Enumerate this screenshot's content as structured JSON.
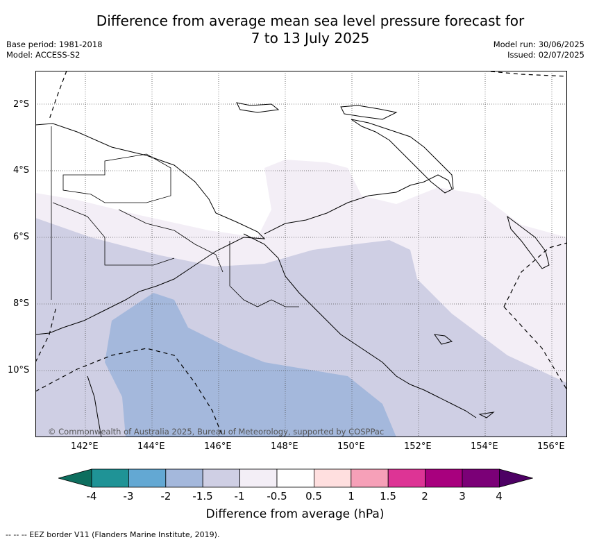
{
  "title": {
    "line1": "Difference from average mean sea level pressure forecast for",
    "line2": "7 to 13 July 2025"
  },
  "meta": {
    "base_period": "Base period: 1981-2018",
    "model": "Model: ACCESS-S2",
    "model_run": "Model run: 30/06/2025",
    "issued": "Issued: 02/07/2025"
  },
  "map": {
    "lat_labels": [
      "2°S",
      "4°S",
      "6°S",
      "8°S",
      "10°S"
    ],
    "lon_labels": [
      "142°E",
      "144°E",
      "146°E",
      "148°E",
      "150°E",
      "152°E",
      "154°E",
      "156°E"
    ],
    "copyright": "© Commonwealth of Australia 2025, Bureau of Meteorology, supported by COSPPac",
    "lat_range": [
      -12,
      -1
    ],
    "lon_range": [
      140.5,
      156.5
    ]
  },
  "colorbar": {
    "title": "Difference from average (hPa)",
    "tick_labels": [
      "-4",
      "-3",
      "-2",
      "-1.5",
      "-1",
      "-0.5",
      "0.5",
      "1",
      "1.5",
      "2",
      "3",
      "4"
    ],
    "colors": [
      "#0d6e5e",
      "#1f9396",
      "#63a8d3",
      "#a4b8dc",
      "#cfcfe4",
      "#f3eef6",
      "#ffffff",
      "#ffdfdf",
      "#f6a0b8",
      "#dd3495",
      "#a8007e",
      "#7b0077",
      "#4d0064"
    ]
  },
  "footnote": "-- -- -- EEZ border V11 (Flanders Marine Institute, 2019)."
}
